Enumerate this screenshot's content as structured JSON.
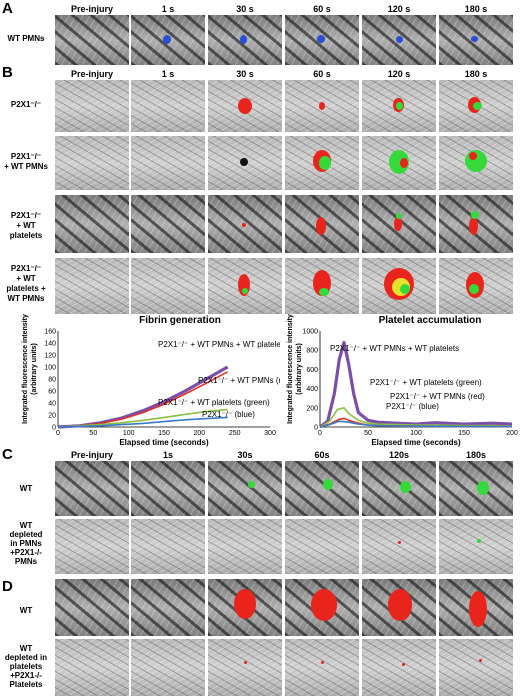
{
  "panel_a": {
    "letter": "A",
    "columns": [
      "Pre-injury",
      "1 s",
      "30 s",
      "60 s",
      "120 s",
      "180 s"
    ],
    "rows": [
      "WT PMNs"
    ]
  },
  "panel_b": {
    "letter": "B",
    "columns": [
      "Pre-injury",
      "1 s",
      "30 s",
      "60 s",
      "120 s",
      "180 s"
    ],
    "rows": [
      "P2X1⁻/⁻",
      "P2X1⁻/⁻\n+ WT PMNs",
      "P2X1⁻/⁻\n+ WT\nplatelets",
      "P2X1⁻/⁻\n+ WT\nplatelets +\nWT PMNs"
    ]
  },
  "panel_c": {
    "letter": "C",
    "columns": [
      "Pre-injury",
      "1s",
      "30s",
      "60s",
      "120s",
      "180s"
    ],
    "rows": [
      "WT",
      "WT\ndepleted\nin PMNs\n+P2X1-/-\nPMNs"
    ]
  },
  "panel_d": {
    "letter": "D",
    "rows": [
      "WT",
      "WT\ndepleted in\nplatelets\n+P2X1-/-\nPlatelets"
    ]
  },
  "colors": {
    "purple": "#7b4fa8",
    "red": "#d9332b",
    "green": "#8cbf3f",
    "blue": "#3a7bc8",
    "fluor_red": "#e8241c",
    "fluor_green": "#36d93a",
    "fluor_blue": "#2a4fd6"
  },
  "chart_data": [
    {
      "type": "line",
      "title": "Fibrin generation",
      "ylabel": "Integrated fluorescence intensity\n(arbitrary units)",
      "xlabel": "Elapsed time (seconds)",
      "xlim": [
        0,
        300
      ],
      "ylim": [
        0,
        160
      ],
      "xticks": [
        0,
        50,
        100,
        150,
        200,
        250,
        300
      ],
      "yticks": [
        0,
        20,
        40,
        60,
        80,
        100,
        120,
        140,
        160
      ],
      "series": [
        {
          "name": "P2X1⁻/⁻ + WT PMNs + WT platelets",
          "color": "purple",
          "x": [
            0,
            30,
            60,
            90,
            120,
            150,
            180,
            210,
            240
          ],
          "y": [
            0,
            2,
            7,
            15,
            27,
            42,
            60,
            80,
            100
          ]
        },
        {
          "name": "P2X1⁻/⁻ + WT PMNs (red)",
          "color": "red",
          "x": [
            0,
            30,
            60,
            90,
            120,
            150,
            180,
            210,
            240
          ],
          "y": [
            0,
            2,
            6,
            13,
            24,
            38,
            55,
            73,
            92
          ]
        },
        {
          "name": "P2X1⁻/⁻ + WT platelets (green)",
          "color": "green",
          "x": [
            0,
            30,
            60,
            90,
            120,
            150,
            180,
            210,
            240
          ],
          "y": [
            0,
            2,
            4,
            7,
            11,
            16,
            21,
            26,
            29
          ]
        },
        {
          "name": "P2X1⁻/⁻ (blue)",
          "color": "blue",
          "x": [
            0,
            30,
            60,
            90,
            120,
            150,
            180,
            210,
            240
          ],
          "y": [
            0,
            1,
            2,
            4,
            6,
            9,
            12,
            14,
            16
          ]
        }
      ]
    },
    {
      "type": "line",
      "title": "Platelet accumulation",
      "ylabel": "Integrated fluorescence intensity\n(arbitrary units)",
      "xlabel": "Elapsed time (seconds)",
      "xlim": [
        0,
        200
      ],
      "ylim": [
        0,
        1000
      ],
      "xticks": [
        0,
        50,
        100,
        150,
        200
      ],
      "yticks": [
        0,
        200,
        400,
        600,
        800,
        1000
      ],
      "series": [
        {
          "name": "P2X1⁻/⁻ + WT PMNs + WT platelets",
          "color": "purple",
          "x": [
            0,
            8,
            15,
            20,
            25,
            30,
            35,
            40,
            50,
            60,
            80,
            100,
            120,
            150,
            180,
            200
          ],
          "y": [
            0,
            60,
            350,
            700,
            880,
            650,
            350,
            150,
            70,
            50,
            40,
            30,
            45,
            30,
            40,
            30
          ]
        },
        {
          "name": "P2X1⁻/⁻ + WT platelets  (green)",
          "color": "green",
          "x": [
            0,
            10,
            18,
            25,
            30,
            40,
            50,
            60,
            80,
            100,
            120,
            150,
            180,
            200
          ],
          "y": [
            0,
            60,
            180,
            200,
            140,
            70,
            40,
            30,
            25,
            20,
            20,
            15,
            15,
            10
          ]
        },
        {
          "name": "P2X1⁻/⁻ + WT PMNs (red)",
          "color": "red",
          "x": [
            0,
            10,
            20,
            25,
            30,
            40,
            50,
            60,
            80,
            100,
            140,
            200
          ],
          "y": [
            0,
            30,
            80,
            90,
            70,
            40,
            20,
            15,
            10,
            8,
            6,
            5
          ]
        },
        {
          "name": "P2X1⁻/⁻ (blue)",
          "color": "blue",
          "x": [
            0,
            10,
            20,
            30,
            40,
            50,
            60,
            80,
            100,
            140,
            200
          ],
          "y": [
            0,
            25,
            60,
            50,
            30,
            20,
            15,
            10,
            8,
            6,
            5
          ]
        }
      ]
    }
  ]
}
